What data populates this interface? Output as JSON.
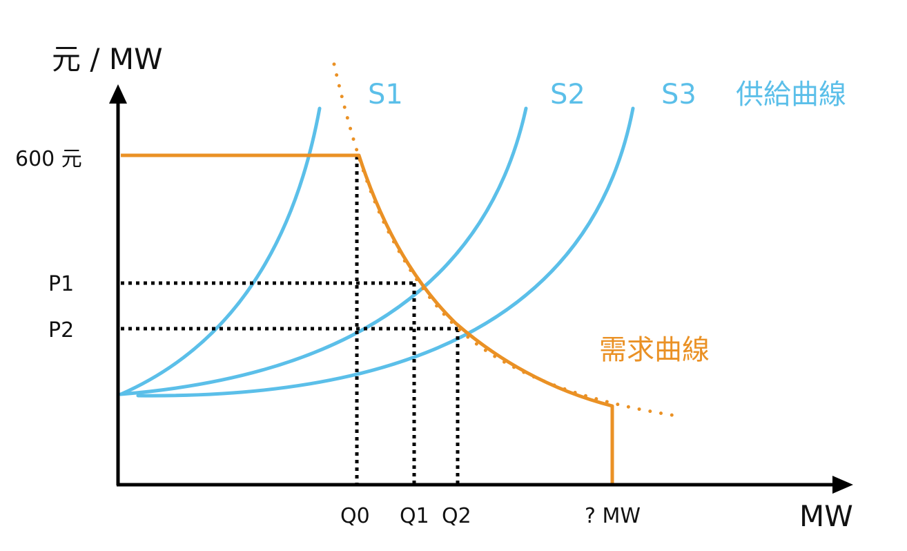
{
  "diagram": {
    "y_axis_title": "元 / MW",
    "x_axis_title": "MW",
    "price_cap_label": "600 元",
    "price_labels": {
      "p1": "P1",
      "p2": "P2"
    },
    "quantity_labels": {
      "q0": "Q0",
      "q1": "Q1",
      "q2": "Q2",
      "qmax": "? MW"
    },
    "supply_curves": [
      {
        "name": "S1"
      },
      {
        "name": "S2"
      },
      {
        "name": "S3"
      }
    ],
    "supply_title": "供給曲線",
    "demand_title": "需求曲線",
    "colors": {
      "axis": "#000000",
      "supply": "#5bbfe9",
      "demand": "#ea9125",
      "guide": "#000000"
    }
  }
}
